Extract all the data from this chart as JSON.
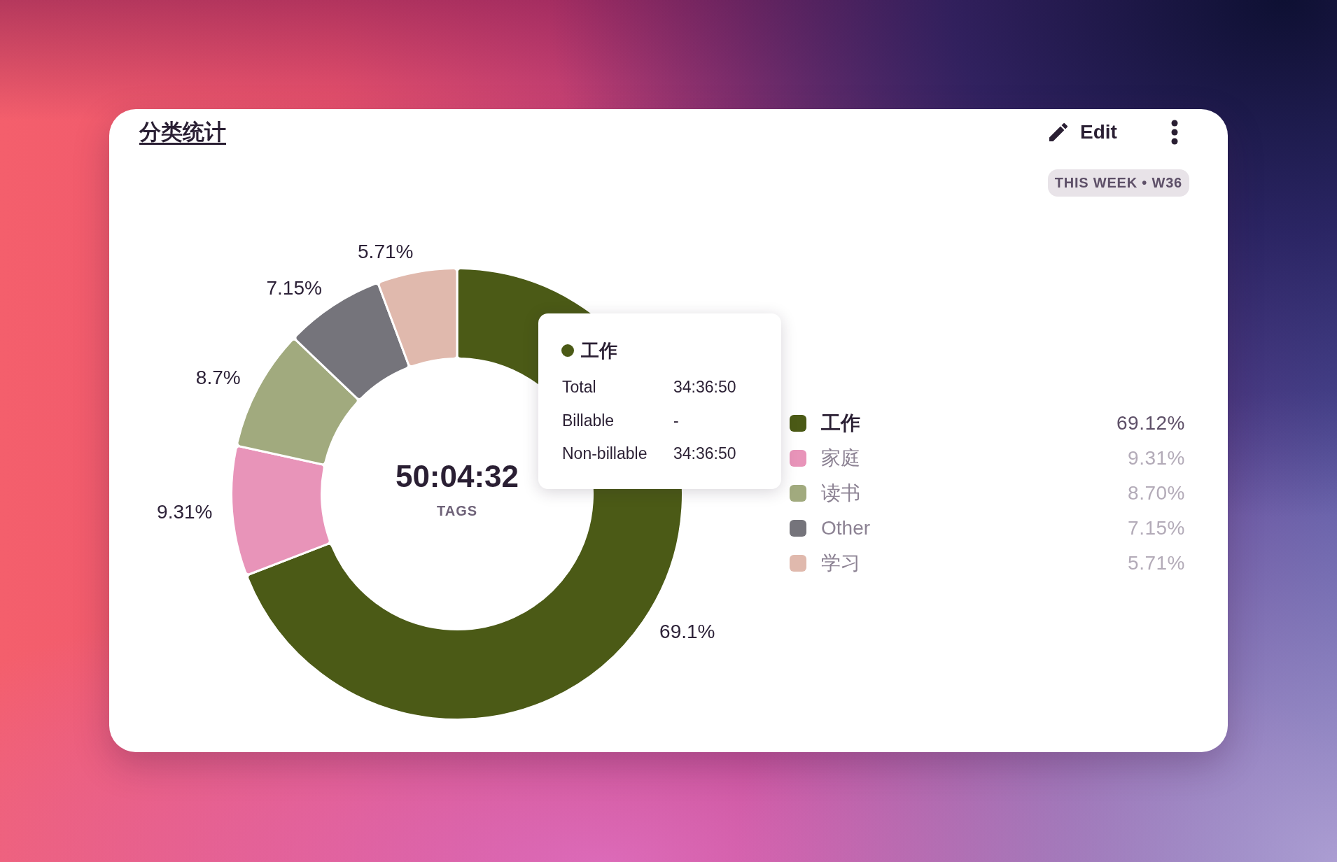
{
  "chart_data": {
    "type": "donut",
    "title": "分类统计",
    "subtitle": "THIS WEEK • W36",
    "categories": [
      "工作",
      "家庭",
      "读书",
      "Other",
      "学习"
    ],
    "values": [
      69.12,
      9.31,
      8.7,
      7.15,
      5.71
    ],
    "colors": [
      "#4b5a16",
      "#e894b9",
      "#a1aa7e",
      "#75747b",
      "#e0b9ad"
    ],
    "value_labels": [
      "69.1%",
      "9.31%",
      "8.7%",
      "7.15%",
      "5.71%"
    ],
    "legend": "right",
    "annotations": [
      "Edit",
      "50:04:32",
      "TAGS",
      "Total",
      "34:36:50",
      "Billable",
      "-",
      "Non-billable",
      "34:36:50",
      "69.12%",
      "9.31%",
      "8.70%",
      "7.15%",
      "5.71%"
    ]
  }
}
